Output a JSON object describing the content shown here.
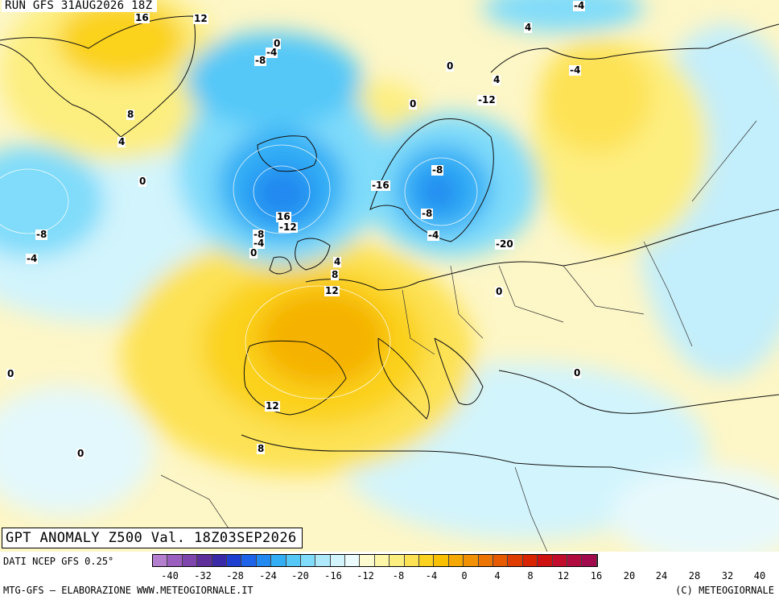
{
  "map": {
    "run_label": "RUN GFS 31AUG2026 18Z",
    "title": "GPT ANOMALY Z500 Val. 18Z03SEP2026",
    "contour_labels": [
      "16",
      "12",
      "0",
      "-4",
      "-8",
      "8",
      "4",
      "0",
      "-4",
      "4",
      "0",
      "-4",
      "4",
      "0",
      "-12",
      "-8",
      "-16",
      "-8",
      "-4",
      "-20",
      "16",
      "-12",
      "-8",
      "-4",
      "0",
      "-8",
      "-4",
      "4",
      "8",
      "12",
      "0",
      "0",
      "12",
      "8",
      "0",
      "0"
    ]
  },
  "legend": {
    "credit": "DATI NCEP GFS 0.25°",
    "ticks": [
      "-40",
      "-32",
      "-28",
      "-24",
      "-20",
      "-16",
      "-12",
      "-8",
      "-4",
      "0",
      "4",
      "8",
      "12",
      "16",
      "20",
      "24",
      "28",
      "32",
      "40"
    ],
    "colors": [
      "#b57fd0",
      "#9a5fbf",
      "#7e45ad",
      "#5e2f9a",
      "#3a2aa8",
      "#1f3fd0",
      "#1e63e8",
      "#2289f0",
      "#33aef5",
      "#55c8f8",
      "#80dcfa",
      "#aee9fb",
      "#d2f4fc",
      "#ecfbfd",
      "#fbfbcf",
      "#fdf6a8",
      "#fdee80",
      "#fde254",
      "#fbd21f",
      "#f9c000",
      "#f5a800",
      "#f19000",
      "#ec7400",
      "#e65a00",
      "#df3d00",
      "#d82400",
      "#cf1010",
      "#c10d2b",
      "#b00a3e",
      "#a10a4d"
    ]
  },
  "footer": {
    "left": "MTG-GFS — ELABORAZIONE WWW.METEOGIORNALE.IT",
    "right": "(C) METEOGIORNALE"
  }
}
